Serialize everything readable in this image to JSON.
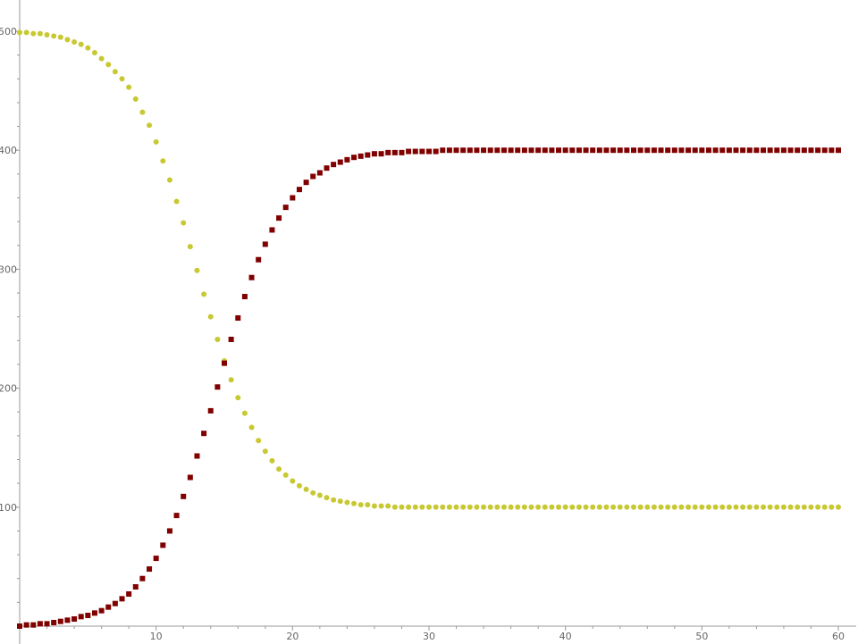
{
  "chart_data": {
    "type": "scatter",
    "title": "",
    "xlabel": "",
    "ylabel": "",
    "xlim": [
      0,
      60.5
    ],
    "ylim": [
      -2,
      510
    ],
    "grid": false,
    "x_ticks": [
      10,
      20,
      30,
      40,
      50,
      60
    ],
    "y_ticks": [
      100,
      200,
      300,
      400,
      500
    ],
    "x": {
      "start": 0,
      "end": 60,
      "step": 0.5
    },
    "series": [
      {
        "marker": "circle",
        "color": "#c8c832",
        "values": [
          499,
          499,
          498,
          498,
          497,
          496,
          495,
          493,
          491,
          489,
          486,
          482,
          477,
          472,
          466,
          460,
          453,
          443,
          432,
          421,
          407,
          391,
          375,
          357,
          339,
          319,
          299,
          279,
          260,
          241,
          223,
          207,
          192,
          179,
          167,
          156,
          147,
          139,
          132,
          127,
          122,
          118,
          115,
          112,
          110,
          108,
          106,
          105,
          104,
          103,
          102,
          102,
          101,
          101,
          101,
          100,
          100,
          100,
          100,
          100,
          100,
          100,
          100,
          100,
          100,
          100,
          100,
          100,
          100,
          100,
          100,
          100,
          100,
          100,
          100,
          100,
          100,
          100,
          100,
          100,
          100,
          100,
          100,
          100,
          100,
          100,
          100,
          100,
          100,
          100,
          100,
          100,
          100,
          100,
          100,
          100,
          100,
          100,
          100,
          100,
          100,
          100,
          100,
          100,
          100,
          100,
          100,
          100,
          100,
          100,
          100,
          100,
          100,
          100,
          100,
          100,
          100,
          100,
          100,
          100,
          100
        ]
      },
      {
        "marker": "square",
        "color": "#800000",
        "values": [
          0,
          1,
          1,
          2,
          2,
          3,
          4,
          5,
          6,
          8,
          9,
          11,
          13,
          16,
          19,
          23,
          27,
          33,
          40,
          48,
          57,
          68,
          80,
          93,
          109,
          125,
          143,
          162,
          181,
          201,
          221,
          241,
          259,
          277,
          293,
          308,
          321,
          333,
          343,
          352,
          360,
          367,
          373,
          378,
          381,
          385,
          388,
          390,
          392,
          394,
          395,
          396,
          397,
          397,
          398,
          398,
          398,
          399,
          399,
          399,
          399,
          399,
          400,
          400,
          400,
          400,
          400,
          400,
          400,
          400,
          400,
          400,
          400,
          400,
          400,
          400,
          400,
          400,
          400,
          400,
          400,
          400,
          400,
          400,
          400,
          400,
          400,
          400,
          400,
          400,
          400,
          400,
          400,
          400,
          400,
          400,
          400,
          400,
          400,
          400,
          400,
          400,
          400,
          400,
          400,
          400,
          400,
          400,
          400,
          400,
          400,
          400,
          400,
          400,
          400,
          400,
          400,
          400,
          400,
          400,
          400
        ]
      }
    ]
  }
}
